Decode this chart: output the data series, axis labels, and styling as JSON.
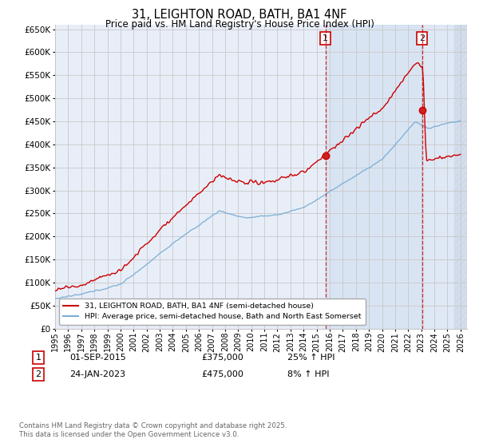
{
  "title": "31, LEIGHTON ROAD, BATH, BA1 4NF",
  "subtitle": "Price paid vs. HM Land Registry's House Price Index (HPI)",
  "ylim": [
    0,
    660000
  ],
  "yticks": [
    0,
    50000,
    100000,
    150000,
    200000,
    250000,
    300000,
    350000,
    400000,
    450000,
    500000,
    550000,
    600000,
    650000
  ],
  "xlim_start": 1995.0,
  "xlim_end": 2026.5,
  "sale1_date": 2015.67,
  "sale1_price": 375000,
  "sale2_date": 2023.07,
  "sale2_price": 475000,
  "legend_label1": "31, LEIGHTON ROAD, BATH, BA1 4NF (semi-detached house)",
  "legend_label2": "HPI: Average price, semi-detached house, Bath and North East Somerset",
  "copyright": "Contains HM Land Registry data © Crown copyright and database right 2025.\nThis data is licensed under the Open Government Licence v3.0.",
  "line_color_red": "#cc0000",
  "line_color_blue": "#7aadd4",
  "background_color": "#e8eef8",
  "highlight_color": "#d0ddf0",
  "plot_bg_color": "#ffffff",
  "grid_color": "#c8c8c8",
  "vline_color": "#cc0000",
  "hatch_color": "#c0c8d8"
}
